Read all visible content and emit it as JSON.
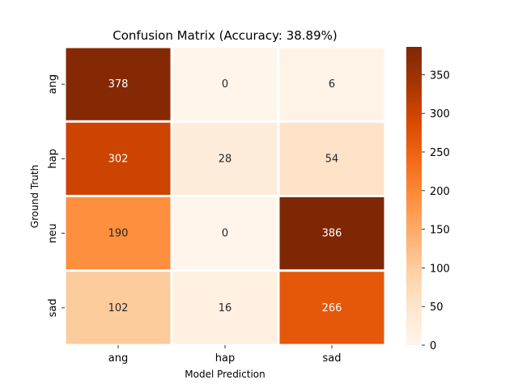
{
  "chart_data": {
    "type": "heatmap",
    "title": "Confusion Matrix (Accuracy: 38.89%)",
    "xlabel": "Model Prediction",
    "ylabel": "Ground Truth",
    "x_categories": [
      "ang",
      "hap",
      "sad"
    ],
    "y_categories": [
      "ang",
      "hap",
      "neu",
      "sad"
    ],
    "values": [
      [
        378,
        0,
        6
      ],
      [
        302,
        28,
        54
      ],
      [
        190,
        0,
        386
      ],
      [
        102,
        16,
        266
      ]
    ],
    "colormap": "Oranges",
    "vmin": 0,
    "vmax": 386,
    "colorbar_ticks": [
      "0",
      "50",
      "100",
      "150",
      "200",
      "250",
      "300",
      "350"
    ],
    "grid": false,
    "cell_separator_color": "#ffffff"
  }
}
